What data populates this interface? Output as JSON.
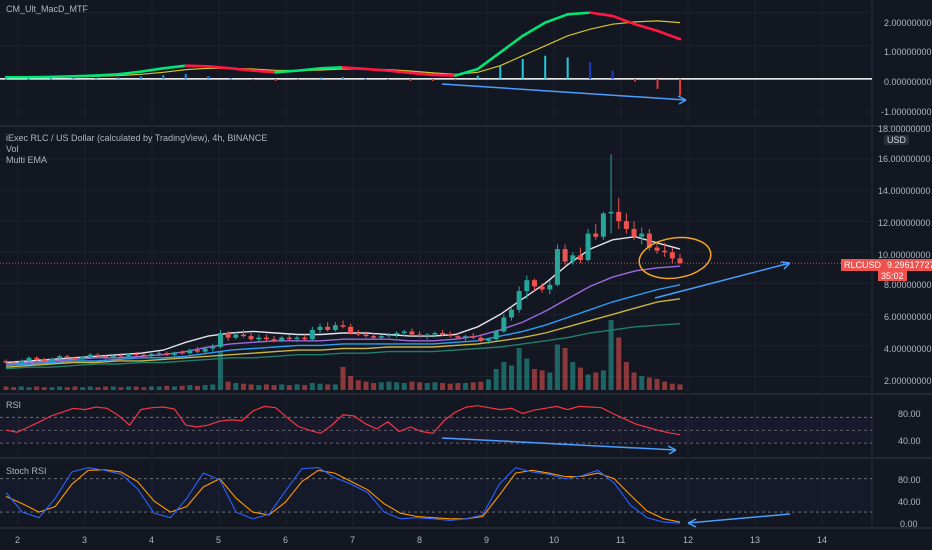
{
  "panes": {
    "macd": {
      "title": "CM_Ult_MacD_MTF",
      "ticks": [
        "2.00000000",
        "1.00000000",
        "0.00000000",
        "-1.00000000"
      ]
    },
    "price": {
      "title": "iExec RLC / US Dollar (calculated by TradingView), 4h, BINANCE",
      "indicator_1": "Vol",
      "indicator_2": "Multi EMA",
      "currency": "USD",
      "ticks": [
        "18.00000000",
        "16.00000000",
        "14.00000000",
        "12.00000000",
        "10.00000000",
        "8.00000000",
        "6.00000000",
        "4.00000000",
        "2.00000000"
      ],
      "badge_symbol": "RLCUSD",
      "badge_price": "9.29617727",
      "badge_countdown": "35:02"
    },
    "rsi": {
      "title": "RSI",
      "ticks": [
        "80.00",
        "40.00"
      ]
    },
    "stoch": {
      "title": "Stoch RSI",
      "ticks": [
        "80.00",
        "40.00",
        "0.00"
      ]
    }
  },
  "time_axis": [
    "2",
    "3",
    "4",
    "5",
    "6",
    "7",
    "8",
    "9",
    "10",
    "11",
    "12",
    "13",
    "14"
  ],
  "colors": {
    "background": "#131722",
    "up": "#26a69a",
    "down": "#ef5350",
    "annotation_blue": "#4a9eff",
    "annotation_orange": "#f5a623",
    "rsi_line": "#f23645",
    "stoch_k": "#2962ff",
    "stoch_d": "#ff9800"
  },
  "chart_data": [
    {
      "type": "candlestick",
      "pane": "price",
      "x_unit": "day",
      "ylim": [
        1,
        18
      ],
      "candles_ohlc": [
        [
          3.0,
          3.1,
          2.8,
          2.9
        ],
        [
          2.9,
          3.0,
          2.7,
          2.85
        ],
        [
          2.85,
          3.1,
          2.8,
          3.0
        ],
        [
          3.0,
          3.3,
          2.9,
          3.2
        ],
        [
          3.2,
          3.3,
          3.0,
          3.1
        ],
        [
          3.1,
          3.2,
          2.9,
          3.0
        ],
        [
          3.0,
          3.2,
          2.9,
          3.15
        ],
        [
          3.15,
          3.4,
          3.05,
          3.3
        ],
        [
          3.3,
          3.4,
          3.1,
          3.2
        ],
        [
          3.2,
          3.3,
          3.0,
          3.1
        ],
        [
          3.1,
          3.3,
          3.0,
          3.25
        ],
        [
          3.25,
          3.5,
          3.2,
          3.4
        ],
        [
          3.4,
          3.5,
          3.2,
          3.3
        ],
        [
          3.3,
          3.4,
          3.1,
          3.2
        ],
        [
          3.2,
          3.4,
          3.1,
          3.35
        ],
        [
          3.35,
          3.5,
          3.2,
          3.3
        ],
        [
          3.3,
          3.5,
          3.2,
          3.45
        ],
        [
          3.45,
          3.6,
          3.3,
          3.4
        ],
        [
          3.4,
          3.5,
          3.2,
          3.3
        ],
        [
          3.3,
          3.5,
          3.2,
          3.45
        ],
        [
          3.45,
          3.6,
          3.3,
          3.5
        ],
        [
          3.5,
          3.6,
          3.3,
          3.4
        ],
        [
          3.4,
          3.6,
          3.3,
          3.55
        ],
        [
          3.55,
          3.7,
          3.4,
          3.5
        ],
        [
          3.5,
          3.8,
          3.4,
          3.7
        ],
        [
          3.7,
          3.9,
          3.5,
          3.6
        ],
        [
          3.6,
          3.9,
          3.5,
          3.8
        ],
        [
          3.8,
          4.1,
          3.6,
          3.9
        ],
        [
          3.9,
          5.0,
          3.8,
          4.8
        ],
        [
          4.8,
          4.9,
          4.3,
          4.5
        ],
        [
          4.5,
          4.9,
          4.4,
          4.7
        ],
        [
          4.7,
          5.0,
          4.5,
          4.6
        ],
        [
          4.6,
          4.8,
          4.3,
          4.4
        ],
        [
          4.4,
          4.7,
          4.2,
          4.5
        ],
        [
          4.5,
          4.7,
          4.3,
          4.4
        ],
        [
          4.4,
          4.6,
          4.2,
          4.3
        ],
        [
          4.3,
          4.6,
          4.2,
          4.5
        ],
        [
          4.5,
          4.7,
          4.3,
          4.4
        ],
        [
          4.4,
          4.6,
          4.2,
          4.5
        ],
        [
          4.5,
          4.7,
          4.3,
          4.4
        ],
        [
          4.4,
          5.2,
          4.3,
          5.0
        ],
        [
          5.0,
          5.4,
          4.8,
          5.2
        ],
        [
          5.2,
          5.5,
          4.9,
          5.0
        ],
        [
          5.0,
          5.5,
          4.9,
          5.3
        ],
        [
          5.3,
          5.6,
          5.1,
          5.2
        ],
        [
          5.2,
          5.4,
          4.7,
          4.8
        ],
        [
          4.8,
          5.0,
          4.6,
          4.7
        ],
        [
          4.7,
          4.9,
          4.5,
          4.6
        ],
        [
          4.6,
          4.8,
          4.4,
          4.5
        ],
        [
          4.5,
          4.7,
          4.4,
          4.6
        ],
        [
          4.6,
          4.8,
          4.5,
          4.7
        ],
        [
          4.7,
          4.9,
          4.5,
          4.8
        ],
        [
          4.8,
          5.0,
          4.6,
          4.9
        ],
        [
          4.9,
          5.1,
          4.6,
          4.7
        ],
        [
          4.7,
          4.9,
          4.5,
          4.6
        ],
        [
          4.6,
          4.8,
          4.4,
          4.7
        ],
        [
          4.7,
          4.9,
          4.5,
          4.8
        ],
        [
          4.8,
          5.0,
          4.6,
          4.7
        ],
        [
          4.7,
          4.9,
          4.5,
          4.6
        ],
        [
          4.6,
          4.8,
          4.4,
          4.5
        ],
        [
          4.5,
          4.7,
          4.3,
          4.6
        ],
        [
          4.6,
          4.8,
          4.4,
          4.5
        ],
        [
          4.5,
          4.7,
          4.2,
          4.3
        ],
        [
          4.3,
          4.5,
          4.1,
          4.4
        ],
        [
          4.4,
          5.0,
          4.3,
          4.9
        ],
        [
          4.9,
          6.0,
          4.8,
          5.8
        ],
        [
          5.8,
          6.5,
          5.6,
          6.3
        ],
        [
          6.3,
          7.8,
          6.1,
          7.5
        ],
        [
          7.5,
          8.5,
          7.0,
          8.2
        ],
        [
          8.2,
          8.3,
          7.5,
          7.8
        ],
        [
          7.8,
          8.0,
          7.4,
          7.6
        ],
        [
          7.6,
          8.2,
          7.3,
          7.9
        ],
        [
          7.9,
          10.5,
          7.8,
          10.2
        ],
        [
          10.2,
          10.5,
          9.2,
          9.4
        ],
        [
          9.4,
          10.0,
          9.2,
          9.8
        ],
        [
          9.8,
          10.3,
          9.3,
          9.5
        ],
        [
          9.5,
          11.5,
          9.4,
          11.2
        ],
        [
          11.2,
          11.8,
          10.8,
          11.0
        ],
        [
          11.0,
          12.6,
          10.8,
          12.5
        ],
        [
          12.5,
          16.3,
          11.2,
          12.6
        ],
        [
          12.6,
          13.5,
          11.5,
          12.0
        ],
        [
          12.0,
          12.5,
          11.2,
          11.5
        ],
        [
          11.5,
          12.0,
          10.8,
          11.0
        ],
        [
          11.0,
          11.6,
          10.5,
          11.2
        ],
        [
          11.2,
          11.5,
          10.1,
          10.3
        ],
        [
          10.3,
          10.7,
          9.9,
          10.1
        ],
        [
          10.1,
          10.6,
          9.7,
          10.0
        ],
        [
          10.0,
          10.3,
          9.3,
          9.6
        ],
        [
          9.6,
          9.9,
          9.2,
          9.3
        ]
      ],
      "volume_relative": [
        0.05,
        0.04,
        0.05,
        0.04,
        0.05,
        0.04,
        0.04,
        0.05,
        0.04,
        0.05,
        0.04,
        0.05,
        0.04,
        0.05,
        0.05,
        0.04,
        0.05,
        0.05,
        0.04,
        0.05,
        0.05,
        0.06,
        0.05,
        0.06,
        0.07,
        0.06,
        0.07,
        0.08,
        0.55,
        0.12,
        0.1,
        0.09,
        0.08,
        0.07,
        0.08,
        0.07,
        0.08,
        0.07,
        0.08,
        0.07,
        0.1,
        0.09,
        0.08,
        0.08,
        0.33,
        0.2,
        0.14,
        0.12,
        0.1,
        0.11,
        0.12,
        0.11,
        0.1,
        0.12,
        0.11,
        0.1,
        0.11,
        0.1,
        0.09,
        0.1,
        0.1,
        0.11,
        0.12,
        0.15,
        0.3,
        0.4,
        0.35,
        0.6,
        0.45,
        0.3,
        0.28,
        0.25,
        0.65,
        0.6,
        0.4,
        0.32,
        0.22,
        0.25,
        0.28,
        1.0,
        0.75,
        0.4,
        0.25,
        0.2,
        0.18,
        0.16,
        0.12,
        0.09,
        0.08
      ],
      "ema_series": [
        {
          "color": "#e0e3eb",
          "values": [
            2.9,
            3.0,
            3.1,
            3.2,
            3.3,
            3.4,
            3.5,
            3.7,
            4.2,
            4.6,
            4.8,
            4.9,
            4.8,
            4.7,
            4.7,
            4.8,
            4.8,
            4.7,
            4.6,
            4.6,
            4.7,
            5.2,
            6.0,
            7.0,
            8.0,
            9.2,
            10.2,
            10.8,
            11.0,
            10.6,
            10.2
          ]
        },
        {
          "color": "#9c6ade",
          "values": [
            2.8,
            2.9,
            3.0,
            3.1,
            3.2,
            3.2,
            3.3,
            3.4,
            3.6,
            3.9,
            4.1,
            4.2,
            4.3,
            4.3,
            4.3,
            4.4,
            4.4,
            4.4,
            4.3,
            4.3,
            4.4,
            4.6,
            5.0,
            5.5,
            6.2,
            7.0,
            7.8,
            8.4,
            8.8,
            9.0,
            9.1
          ]
        },
        {
          "color": "#2a9df4",
          "values": [
            2.7,
            2.8,
            2.9,
            3.0,
            3.0,
            3.1,
            3.2,
            3.2,
            3.3,
            3.5,
            3.7,
            3.8,
            3.9,
            4.0,
            4.0,
            4.1,
            4.1,
            4.1,
            4.1,
            4.1,
            4.2,
            4.3,
            4.6,
            4.9,
            5.3,
            5.8,
            6.3,
            6.8,
            7.2,
            7.6,
            7.9
          ]
        },
        {
          "color": "#c9b43d",
          "values": [
            2.6,
            2.7,
            2.8,
            2.9,
            2.9,
            3.0,
            3.0,
            3.1,
            3.2,
            3.3,
            3.4,
            3.5,
            3.6,
            3.7,
            3.7,
            3.8,
            3.8,
            3.9,
            3.9,
            3.9,
            4.0,
            4.1,
            4.3,
            4.5,
            4.8,
            5.2,
            5.6,
            6.0,
            6.4,
            6.8,
            7.0
          ]
        },
        {
          "color": "#1f7f68",
          "values": [
            2.5,
            2.6,
            2.6,
            2.7,
            2.8,
            2.8,
            2.9,
            2.9,
            3.0,
            3.1,
            3.2,
            3.2,
            3.3,
            3.4,
            3.4,
            3.5,
            3.5,
            3.6,
            3.6,
            3.6,
            3.7,
            3.8,
            3.9,
            4.1,
            4.3,
            4.5,
            4.8,
            5.0,
            5.2,
            5.3,
            5.4
          ]
        }
      ]
    },
    {
      "type": "line",
      "pane": "macd",
      "ylim": [
        -1.3,
        2.2
      ],
      "series": [
        {
          "values": [
            0.05,
            0.05,
            0.06,
            0.08,
            0.1,
            0.14,
            0.22,
            0.32,
            0.4,
            0.38,
            0.32,
            0.25,
            0.2,
            0.25,
            0.32,
            0.35,
            0.3,
            0.25,
            0.18,
            0.12,
            0.1,
            0.3,
            0.8,
            1.3,
            1.7,
            1.95,
            2.0,
            1.9,
            1.65,
            1.45,
            1.2
          ]
        },
        {
          "values": [
            0.04,
            0.05,
            0.05,
            0.06,
            0.08,
            0.1,
            0.14,
            0.2,
            0.28,
            0.32,
            0.32,
            0.3,
            0.26,
            0.25,
            0.27,
            0.3,
            0.3,
            0.28,
            0.24,
            0.18,
            0.14,
            0.2,
            0.4,
            0.7,
            1.0,
            1.3,
            1.5,
            1.65,
            1.72,
            1.75,
            1.7
          ]
        }
      ],
      "histogram": [
        0.02,
        0.01,
        0.02,
        0.03,
        0.03,
        0.05,
        0.08,
        0.12,
        0.15,
        0.08,
        0.02,
        -0.04,
        -0.06,
        0.0,
        0.05,
        0.06,
        0.01,
        -0.03,
        -0.06,
        -0.06,
        -0.04,
        0.1,
        0.4,
        0.6,
        0.7,
        0.65,
        0.5,
        0.25,
        -0.08,
        -0.3,
        -0.5
      ]
    },
    {
      "type": "line",
      "pane": "rsi",
      "ylim": [
        10,
        100
      ],
      "guides": [
        70,
        50,
        30
      ],
      "values": [
        50,
        47,
        55,
        63,
        72,
        78,
        84,
        82,
        86,
        84,
        73,
        58,
        82,
        85,
        86,
        83,
        58,
        55,
        58,
        64,
        66,
        65,
        80,
        87,
        85,
        70,
        56,
        50,
        45,
        58,
        74,
        72,
        60,
        52,
        63,
        48,
        55,
        48,
        45,
        65,
        78,
        86,
        88,
        85,
        82,
        84,
        76,
        81,
        84,
        87,
        82,
        87,
        86,
        85,
        76,
        68,
        60,
        55,
        50,
        46,
        43
      ]
    },
    {
      "type": "line",
      "pane": "stoch_rsi",
      "ylim": [
        -5,
        110
      ],
      "guides": [
        80,
        20
      ],
      "series": [
        {
          "values": [
            55,
            20,
            10,
            45,
            92,
            100,
            95,
            88,
            62,
            18,
            10,
            45,
            90,
            78,
            20,
            8,
            16,
            58,
            98,
            100,
            82,
            70,
            55,
            20,
            8,
            10,
            8,
            5,
            8,
            15,
            70,
            100,
            92,
            88,
            80,
            85,
            95,
            72,
            32,
            10,
            2,
            0
          ]
        },
        {
          "values": [
            48,
            35,
            20,
            30,
            70,
            95,
            96,
            92,
            75,
            40,
            20,
            30,
            65,
            80,
            45,
            20,
            15,
            38,
            75,
            95,
            90,
            75,
            60,
            35,
            18,
            12,
            10,
            8,
            8,
            12,
            50,
            90,
            95,
            90,
            84,
            84,
            90,
            80,
            50,
            22,
            8,
            2
          ]
        }
      ]
    }
  ]
}
